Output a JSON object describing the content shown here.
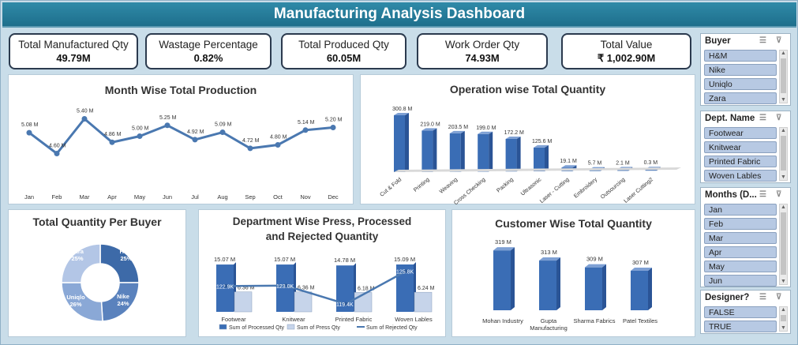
{
  "title": "Manufacturing Analysis Dashboard",
  "kpis": [
    {
      "label": "Total Manufactured Qty",
      "value": "49.79M"
    },
    {
      "label": "Wastage Percentage",
      "value": "0.82%"
    },
    {
      "label": "Total Produced Qty",
      "value": "60.05M"
    },
    {
      "label": "Work Order Qty",
      "value": "74.93M"
    },
    {
      "label": "Total Value",
      "value": "₹ 1,002.90M"
    }
  ],
  "slicers": [
    {
      "title": "Buyer",
      "items": [
        "H&M",
        "Nike",
        "Uniqlo",
        "Zara"
      ]
    },
    {
      "title": "Dept. Name",
      "items": [
        "Footwear",
        "Knitwear",
        "Printed Fabric",
        "Woven Lables"
      ]
    },
    {
      "title": "Months (D...",
      "items": [
        "Jan",
        "Feb",
        "Mar",
        "Apr",
        "May",
        "Jun"
      ]
    },
    {
      "title": "Designer?",
      "items": [
        "FALSE",
        "TRUE"
      ]
    }
  ],
  "icons": {
    "multiselect": "multi-select-icon",
    "clear": "clear-filter-icon"
  },
  "colors": {
    "title_bar": "#1e6f8c",
    "line": "#4a78b0",
    "bar": "#3a6db5",
    "bar_light": "#c6d4ea",
    "background": "#c9dde9"
  },
  "chart_data": [
    {
      "type": "line",
      "title": "Month Wise Total Production",
      "categories": [
        "Jan",
        "Feb",
        "Mar",
        "Apr",
        "May",
        "Jun",
        "Jul",
        "Aug",
        "Sep",
        "Oct",
        "Nov",
        "Dec"
      ],
      "values": [
        5.08,
        4.6,
        5.4,
        4.86,
        5.0,
        5.25,
        4.92,
        5.09,
        4.72,
        4.8,
        5.14,
        5.2
      ],
      "labels": [
        "5.08 M",
        "4.60 M",
        "5.40 M",
        "4.86 M",
        "5.00 M",
        "5.25 M",
        "4.92 M",
        "5.09 M",
        "4.72 M",
        "4.80 M",
        "5.14 M",
        "5.20 M"
      ]
    },
    {
      "type": "bar",
      "title": "Operation wise Total Quantity",
      "categories": [
        "Cut & Fold",
        "Printing",
        "Weaving",
        "Cross Checking",
        "Packing",
        "Ultrasonic",
        "Laser - Cutting",
        "Embroidery",
        "Outsourcing",
        "Laser Cutting2"
      ],
      "values": [
        300.8,
        219.0,
        203.5,
        199.0,
        172.2,
        125.6,
        19.1,
        5.7,
        2.1,
        0.3
      ],
      "labels": [
        "300.8 M",
        "219.0 M",
        "203.5 M",
        "199.0 M",
        "172.2 M",
        "125.6 M",
        "19.1 M",
        "5.7 M",
        "2.1 M",
        "0.3 M"
      ]
    },
    {
      "type": "pie",
      "title": "Total Quantity Per Buyer",
      "categories": [
        "H&M",
        "Nike",
        "Uniqlo",
        "Zara"
      ],
      "values": [
        25,
        24,
        26,
        25
      ],
      "labels": [
        "25%",
        "24%",
        "26%",
        "25%"
      ]
    },
    {
      "type": "bar",
      "title": "Department Wise Press, Processed",
      "subtitle": "and Rejected Quantity",
      "categories": [
        "Footwear",
        "Knitwear",
        "Printed Fabric",
        "Woven Lables"
      ],
      "series": [
        {
          "name": "Sum of Processed Qty",
          "values": [
            15.07,
            15.07,
            14.78,
            15.09
          ],
          "labels": [
            "15.07 M",
            "15.07 M",
            "14.78 M",
            "15.09 M"
          ]
        },
        {
          "name": "Sum of Press Qty",
          "values": [
            6.36,
            6.36,
            6.18,
            6.24
          ],
          "labels": [
            "6.36 M",
            "6.36 M",
            "6.18 M",
            "6.24 M"
          ]
        },
        {
          "name": "Sum of Rejected Qty",
          "values": [
            122.9,
            123.0,
            119.4,
            125.8
          ],
          "labels": [
            "122.9K",
            "123.0K",
            "119.4K",
            "125.8K"
          ]
        }
      ]
    },
    {
      "type": "bar",
      "title": "Customer Wise Total Quantity",
      "categories": [
        "Mohan Industry",
        "Gupta Manufacturing",
        "Sharma Fabrics",
        "Patel Textiles"
      ],
      "values": [
        319,
        313,
        309,
        307
      ],
      "labels": [
        "319 M",
        "313 M",
        "309 M",
        "307 M"
      ]
    }
  ]
}
